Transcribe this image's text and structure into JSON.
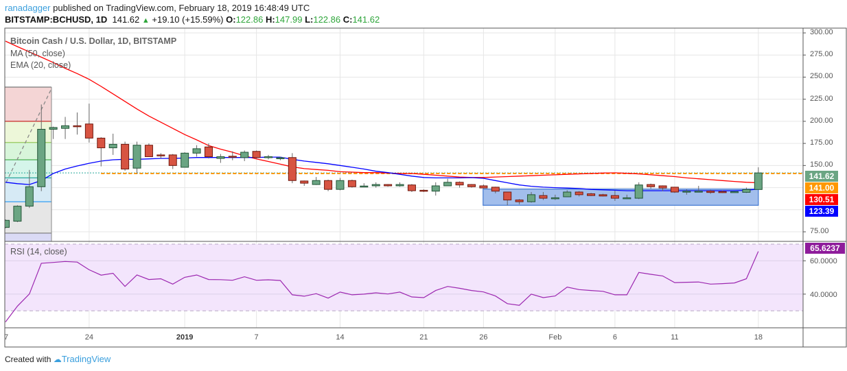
{
  "header": {
    "user": "ranadagger",
    "published_text": "published on TradingView.com, February 18, 2019 16:48:49 UTC",
    "symbol": "BITSTAMP:BCHUSD, 1D",
    "last": "141.62",
    "change": "+19.10 (+15.59%)",
    "o_label": "O:",
    "o": "122.86",
    "h_label": "H:",
    "h": "147.99",
    "l_label": "L:",
    "l": "122.86",
    "c_label": "C:",
    "c": "141.62"
  },
  "legend": {
    "title": "Bitcoin Cash / U.S. Dollar, 1D, BITSTAMP",
    "ma": "MA (50, close)",
    "ema": "EMA (20, close)",
    "rsi": "RSI (14, close)"
  },
  "price_labels": [
    {
      "value": "141.62",
      "color": "#6ba583"
    },
    {
      "value": "141.00",
      "color": "#ff9800"
    },
    {
      "value": "130.51",
      "color": "#ff0000"
    },
    {
      "value": "123.39",
      "color": "#0000ff"
    }
  ],
  "rsi_label": {
    "value": "65.6237",
    "color": "#8e1c9b"
  },
  "footer": {
    "created_with": "Created with",
    "brand": "TradingView"
  },
  "chart_data": {
    "type": "candlestick",
    "price_axis": {
      "range": [
        65,
        305
      ],
      "ticks": [
        "300.00",
        "275.00",
        "250.00",
        "225.00",
        "200.00",
        "175.00",
        "150.00",
        "75.00"
      ]
    },
    "rsi_axis": {
      "range": [
        20,
        72
      ],
      "ticks": [
        "60.0000",
        "40.0000"
      ],
      "bands": [
        30,
        70
      ]
    },
    "x_ticks": [
      {
        "label": "7",
        "date": "2018-12-17"
      },
      {
        "label": "24",
        "date": "2018-12-24"
      },
      {
        "label": "2019",
        "date": "2019-01-01",
        "bold": true
      },
      {
        "label": "7",
        "date": "2019-01-07"
      },
      {
        "label": "14",
        "date": "2019-01-14"
      },
      {
        "label": "21",
        "date": "2019-01-21"
      },
      {
        "label": "26",
        "date": "2019-01-26"
      },
      {
        "label": "Feb",
        "date": "2019-02-01"
      },
      {
        "label": "6",
        "date": "2019-02-06"
      },
      {
        "label": "11",
        "date": "2019-02-11"
      },
      {
        "label": "18",
        "date": "2019-02-18"
      }
    ],
    "colors": {
      "up": "#6ba583",
      "down": "#d75442",
      "ma": "#ff0000",
      "ema": "#0000ff",
      "rsi": "#9c27b0"
    },
    "grid": true,
    "dates": [
      "2018-12-17",
      "2018-12-18",
      "2018-12-19",
      "2018-12-20",
      "2018-12-21",
      "2018-12-22",
      "2018-12-23",
      "2018-12-24",
      "2018-12-25",
      "2018-12-26",
      "2018-12-27",
      "2018-12-28",
      "2018-12-29",
      "2018-12-30",
      "2018-12-31",
      "2019-01-01",
      "2019-01-02",
      "2019-01-03",
      "2019-01-04",
      "2019-01-05",
      "2019-01-06",
      "2019-01-07",
      "2019-01-08",
      "2019-01-09",
      "2019-01-10",
      "2019-01-11",
      "2019-01-12",
      "2019-01-13",
      "2019-01-14",
      "2019-01-15",
      "2019-01-16",
      "2019-01-17",
      "2019-01-18",
      "2019-01-19",
      "2019-01-20",
      "2019-01-21",
      "2019-01-22",
      "2019-01-23",
      "2019-01-24",
      "2019-01-25",
      "2019-01-26",
      "2019-01-27",
      "2019-01-28",
      "2019-01-29",
      "2019-01-30",
      "2019-01-31",
      "2019-02-01",
      "2019-02-02",
      "2019-02-03",
      "2019-02-04",
      "2019-02-05",
      "2019-02-06",
      "2019-02-07",
      "2019-02-08",
      "2019-02-09",
      "2019-02-10",
      "2019-02-11",
      "2019-02-12",
      "2019-02-13",
      "2019-02-14",
      "2019-02-15",
      "2019-02-16",
      "2019-02-17",
      "2019-02-18"
    ],
    "ohlc": [
      [
        80,
        89,
        79,
        88
      ],
      [
        87,
        105,
        86,
        104
      ],
      [
        104,
        145,
        102,
        126
      ],
      [
        126,
        219,
        121,
        191
      ],
      [
        191,
        194,
        180,
        193
      ],
      [
        192,
        205,
        180,
        195
      ],
      [
        195,
        210,
        185,
        194
      ],
      [
        197,
        220,
        176,
        181
      ],
      [
        181,
        182,
        149,
        170
      ],
      [
        170,
        186,
        162,
        174
      ],
      [
        174,
        177,
        144,
        146
      ],
      [
        147,
        177,
        141,
        173
      ],
      [
        173,
        175,
        160,
        160
      ],
      [
        162,
        164,
        158,
        161.5
      ],
      [
        162,
        163,
        146,
        150
      ],
      [
        148,
        165,
        148,
        164
      ],
      [
        164,
        173,
        160,
        169
      ],
      [
        171,
        175,
        158,
        160
      ],
      [
        158,
        163,
        153,
        160
      ],
      [
        160.5,
        166,
        156,
        160
      ],
      [
        159,
        167,
        155,
        165
      ],
      [
        166,
        167,
        158,
        159
      ],
      [
        159.5,
        162,
        157,
        160
      ],
      [
        158,
        160,
        156,
        158.8
      ],
      [
        159,
        164,
        130,
        133
      ],
      [
        132.5,
        133,
        127,
        130
      ],
      [
        128.5,
        137,
        128,
        133
      ],
      [
        133,
        134,
        121,
        123
      ],
      [
        123,
        136,
        122,
        133
      ],
      [
        133,
        134,
        125,
        126
      ],
      [
        126,
        130,
        126,
        126.8
      ],
      [
        127,
        131,
        125,
        128.5
      ],
      [
        128.5,
        129,
        126,
        127
      ],
      [
        127,
        131,
        126,
        128.5
      ],
      [
        128,
        129,
        120,
        121.5
      ],
      [
        122,
        123,
        120,
        121.5
      ],
      [
        121,
        131,
        116,
        127
      ],
      [
        127,
        135,
        127,
        131
      ],
      [
        131,
        132,
        125,
        128
      ],
      [
        128.5,
        129,
        125,
        126
      ],
      [
        127,
        128.5,
        124,
        124.6
      ],
      [
        125.5,
        126,
        118.5,
        121
      ],
      [
        120,
        120,
        105,
        111
      ],
      [
        111,
        112,
        106,
        109
      ],
      [
        109,
        120,
        108,
        117
      ],
      [
        116,
        120,
        111,
        113
      ],
      [
        113,
        117,
        111,
        113.5
      ],
      [
        114.6,
        122,
        114.6,
        120
      ],
      [
        120,
        121,
        115,
        117
      ],
      [
        118,
        119,
        115.5,
        116
      ],
      [
        117,
        118,
        115,
        115.5
      ],
      [
        116,
        121.5,
        110,
        113
      ],
      [
        113,
        117,
        112,
        113.5
      ],
      [
        113,
        131,
        112,
        128
      ],
      [
        128.5,
        129.5,
        124,
        126
      ],
      [
        127,
        127.5,
        121,
        124.6
      ],
      [
        125.5,
        125.5,
        119,
        120
      ],
      [
        120.5,
        123,
        117,
        121
      ],
      [
        120.5,
        127,
        120,
        121
      ],
      [
        121,
        122.5,
        118,
        119.5
      ],
      [
        120.5,
        122,
        119,
        120
      ],
      [
        120,
        121,
        119.5,
        120.5
      ],
      [
        119.7,
        125,
        119,
        122.86
      ],
      [
        122.86,
        147.99,
        122.86,
        141.62
      ]
    ],
    "ma50": [
      290.7,
      284.5,
      278.5,
      272.5,
      266.5,
      260,
      254,
      247.5,
      239.5,
      231,
      222.5,
      214,
      206,
      199,
      192,
      185,
      179,
      172.5,
      168.5,
      165,
      161,
      157.5,
      154.5,
      151.5,
      148.5,
      146.5,
      145.5,
      144.5,
      143,
      142.5,
      142,
      142,
      141.5,
      141,
      141,
      140,
      139,
      138,
      137,
      136.5,
      136.5,
      137,
      137.5,
      138,
      138.5,
      139,
      139.5,
      140,
      140.5,
      141,
      141.5,
      141.7,
      141.2,
      140.5,
      139.5,
      138.5,
      137.5,
      136,
      135,
      134,
      133,
      132,
      131,
      130.51
    ],
    "ema20": [
      131,
      129.5,
      128.5,
      133,
      141,
      146,
      149.5,
      152.5,
      155,
      156.5,
      157,
      157,
      157.5,
      158,
      158,
      158.5,
      159,
      159,
      159,
      159,
      159,
      159,
      159.5,
      159.5,
      157,
      155,
      153.5,
      152,
      150,
      148,
      146,
      143.5,
      142,
      140,
      138,
      136.5,
      136,
      136,
      136,
      136.3,
      135.5,
      133,
      130.5,
      128,
      126.5,
      125.5,
      125,
      124.5,
      124,
      123,
      122.5,
      122,
      121.5,
      121.5,
      121.5,
      121.5,
      121.5,
      121.5,
      121.5,
      121.5,
      121.5,
      121.5,
      122,
      123.39
    ],
    "rsi": [
      23.3,
      32.8,
      40.1,
      58.5,
      59,
      59.6,
      59.2,
      54.6,
      51.4,
      52.5,
      44.6,
      51.5,
      48.75,
      49.2,
      46,
      50.1,
      51.5,
      48.75,
      48.7,
      48.3,
      50.4,
      48.3,
      48.6,
      48.2,
      39.6,
      38.75,
      40.3,
      37.6,
      41.25,
      39.6,
      40,
      40.8,
      40.1,
      41.25,
      38.3,
      37.9,
      42.2,
      44.6,
      43.5,
      42.2,
      41.3,
      38.9,
      34.3,
      33.3,
      40,
      37.9,
      38.9,
      44.2,
      42.7,
      42.2,
      41.7,
      39.6,
      39.6,
      53,
      51.9,
      50.9,
      46.9,
      47.1,
      47.3,
      46,
      46.3,
      46.7,
      49.2,
      65.6237
    ],
    "horizontal_lines": [
      {
        "price": 141.62,
        "color": "#26a69a",
        "style": "dotted"
      },
      {
        "price": 141.0,
        "color": "#ff9800",
        "style": "dashed",
        "from": "2018-12-25"
      }
    ],
    "fib_levels": [
      238.7,
      200,
      176,
      156.5,
      136,
      109,
      73.5
    ],
    "fib_colors": [
      "#f4d5d5",
      "#edf7d9",
      "#d8f5da",
      "#d5f5ea",
      "#d6eaf5",
      "#e6e6e6",
      "#dadaf5"
    ],
    "fib_line_colors": [
      "#777777",
      "#c62828",
      "#8bc34a",
      "#4caf50",
      "#26a69a",
      "#2196f3",
      "#777777"
    ],
    "fib_range": [
      "2018-12-17",
      "2018-12-20"
    ],
    "box": {
      "from": "2019-01-27",
      "to": "2019-02-18",
      "top": 123.39,
      "bottom": 105,
      "fill": "#9dbbeb",
      "border": "#4a7fd4"
    }
  }
}
